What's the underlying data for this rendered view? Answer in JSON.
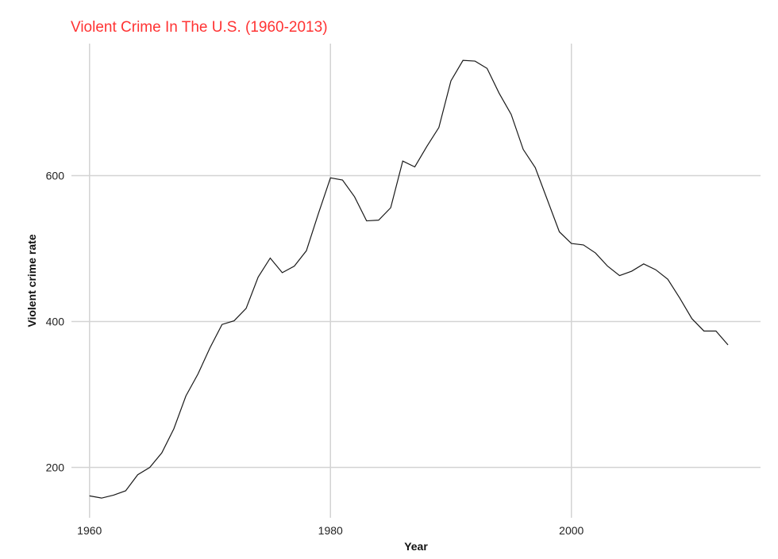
{
  "colors": {
    "title": "#ff3333",
    "line": "#1a1a1a",
    "grid": "#d3d3d3"
  },
  "chart_data": {
    "type": "line",
    "title": "Violent Crime In The U.S. (1960-2013)",
    "xlabel": "Year",
    "ylabel": "Violent crime rate",
    "xlim": [
      1958.5,
      2015.7
    ],
    "ylim": [
      131,
      781
    ],
    "x_ticks": [
      1960,
      1980,
      2000
    ],
    "y_ticks": [
      200,
      400,
      600
    ],
    "grid": true,
    "legend": "none",
    "x": [
      1960,
      1961,
      1962,
      1963,
      1964,
      1965,
      1966,
      1967,
      1968,
      1969,
      1970,
      1971,
      1972,
      1973,
      1974,
      1975,
      1976,
      1977,
      1978,
      1979,
      1980,
      1981,
      1982,
      1983,
      1984,
      1985,
      1986,
      1987,
      1988,
      1989,
      1990,
      1991,
      1992,
      1993,
      1994,
      1995,
      1996,
      1997,
      1998,
      1999,
      2000,
      2001,
      2002,
      2003,
      2004,
      2005,
      2006,
      2007,
      2008,
      2009,
      2010,
      2011,
      2012,
      2013
    ],
    "y": [
      161,
      158,
      162,
      168,
      190,
      200,
      220,
      253,
      298,
      328,
      364,
      396,
      401,
      418,
      461,
      487,
      467,
      476,
      497,
      548,
      597,
      594,
      571,
      538,
      539,
      556,
      620,
      612,
      640,
      666,
      730,
      758,
      757,
      747,
      713,
      684,
      636,
      611,
      567,
      523,
      507,
      505,
      494,
      476,
      463,
      469,
      479,
      471,
      458,
      432,
      404,
      387,
      387,
      368
    ]
  }
}
